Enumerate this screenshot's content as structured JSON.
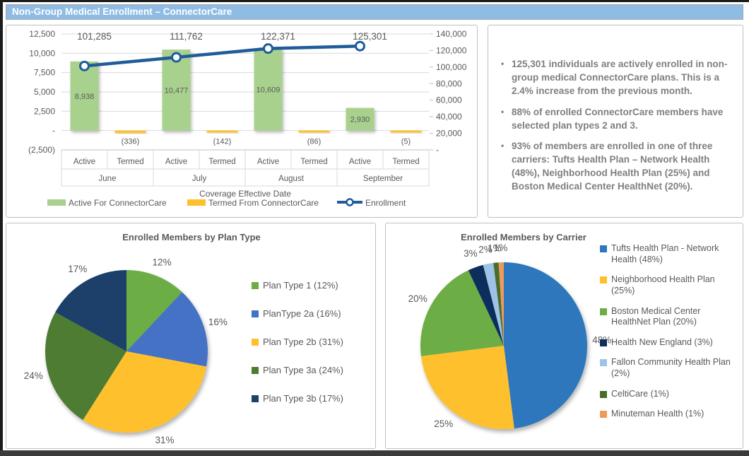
{
  "page": {
    "title": "Non-Group Medical Enrollment – ConnectorCare"
  },
  "insights": {
    "bullets": [
      "125,301 individuals are actively enrolled in non-group medical ConnectorCare plans. This is a 2.4% increase from the previous month.",
      "88% of enrolled ConnectorCare members have selected plan types 2 and 3.",
      "93% of members are enrolled in one of three carriers: Tufts Health Plan – Network Health (48%), Neighborhood Health Plan (25%) and Boston Medical Center HealthNet (20%)."
    ]
  },
  "chart_data": [
    {
      "type": "bar",
      "subtype": "combo-bar-line-dual-axis",
      "title": "",
      "xlabel": "Coverage Effective Date",
      "categories": [
        "June",
        "July",
        "August",
        "September"
      ],
      "sub_categories": [
        "Active",
        "Termed"
      ],
      "left_axis": {
        "min": -2500,
        "max": 12500,
        "step": 2500,
        "ticks": [
          "12,500",
          "10,000",
          "7,500",
          "5,000",
          "2,500",
          "-",
          "(2,500)"
        ]
      },
      "right_axis": {
        "min": 0,
        "max": 140000,
        "step": 20000,
        "ticks": [
          "140,000",
          "120,000",
          "100,000",
          "80,000",
          "60,000",
          "40,000",
          "20,000",
          "-"
        ]
      },
      "grid": true,
      "legend_position": "bottom",
      "series": [
        {
          "name": "Active For ConnectorCare",
          "type": "bar",
          "color": "#A9D18E",
          "values": [
            8938,
            10477,
            10609,
            2930
          ],
          "labels": [
            "8,938",
            "10,477",
            "10,609",
            "2,930"
          ]
        },
        {
          "name": "Termed From ConnectorCare",
          "type": "bar",
          "color": "#FFC02E",
          "values": [
            -336,
            -142,
            -86,
            -5
          ],
          "labels": [
            "(336)",
            "(142)",
            "(86)",
            "(5)"
          ]
        },
        {
          "name": "Enrollment",
          "type": "line",
          "color": "#1F5C99",
          "values": [
            101285,
            111762,
            122371,
            125301
          ],
          "labels": [
            "101,285",
            "111,762",
            "122,371",
            "125,301"
          ]
        }
      ]
    },
    {
      "type": "pie",
      "title": "Enrolled Members by Plan Type",
      "legend_position": "right",
      "slices": [
        {
          "legend": "Plan Type 1 (12%)",
          "label": "12%",
          "value": 12,
          "color": "#6CAD45"
        },
        {
          "legend": "PlanType 2a (16%)",
          "label": "16%",
          "value": 16,
          "color": "#4472C4"
        },
        {
          "legend": "Plan Type 2b (31%)",
          "label": "31%",
          "value": 31,
          "color": "#FFC02E"
        },
        {
          "legend": "Plan Type 3a (24%)",
          "label": "24%",
          "value": 24,
          "color": "#4E7B31"
        },
        {
          "legend": "Plan Type 3b (17%)",
          "label": "17%",
          "value": 17,
          "color": "#1F4169"
        }
      ]
    },
    {
      "type": "pie",
      "title": "Enrolled Members by Carrier",
      "legend_position": "right",
      "slices": [
        {
          "legend": "Tufts Health Plan - Network Health (48%)",
          "label": "48%",
          "value": 48,
          "color": "#2E77BC"
        },
        {
          "legend": "Neighborhood Health Plan (25%)",
          "label": "25%",
          "value": 25,
          "color": "#FFC02E"
        },
        {
          "legend": "Boston Medical Center HealthNet Plan (20%)",
          "label": "20%",
          "value": 20,
          "color": "#6CAD45"
        },
        {
          "legend": "Health New England (3%)",
          "label": "3%",
          "value": 3,
          "color": "#0E2E5C"
        },
        {
          "legend": "Fallon Community Health Plan (2%)",
          "label": "2%",
          "value": 2,
          "color": "#9DC3E6"
        },
        {
          "legend": "CeltiCare (1%)",
          "label": "1%",
          "value": 1,
          "color": "#486D2A"
        },
        {
          "legend": "Minuteman Health (1%)",
          "label": "1%",
          "value": 1,
          "color": "#EC9B5B"
        }
      ]
    }
  ],
  "colors": {
    "header_bg": "#8FBCE4",
    "panel_border": "#BFBFBF",
    "grid": "#D9D9D9",
    "axis": "#BFBFBF",
    "text_gray": "#595959",
    "notes_text": "#7F7F7F"
  }
}
